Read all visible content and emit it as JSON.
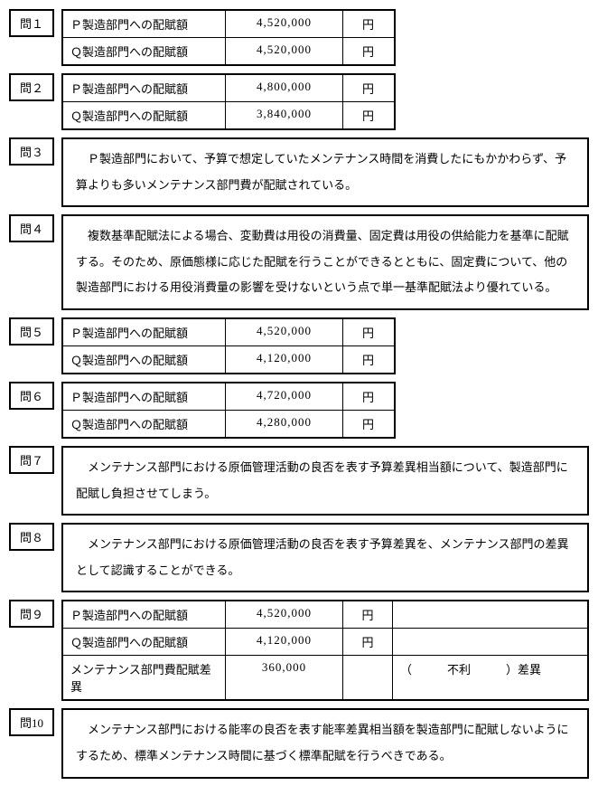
{
  "questions": [
    {
      "label": "問１",
      "type": "table",
      "narrow": true,
      "rows": [
        {
          "label": "Ｐ製造部門への配賦額",
          "value": "4,520,000",
          "unit": "円"
        },
        {
          "label": "Ｑ製造部門への配賦額",
          "value": "4,520,000",
          "unit": "円"
        }
      ]
    },
    {
      "label": "問２",
      "type": "table",
      "narrow": true,
      "rows": [
        {
          "label": "Ｐ製造部門への配賦額",
          "value": "4,800,000",
          "unit": "円"
        },
        {
          "label": "Ｑ製造部門への配賦額",
          "value": "3,840,000",
          "unit": "円"
        }
      ]
    },
    {
      "label": "問３",
      "type": "text",
      "text": "Ｐ製造部門において、予算で想定していたメンテナンス時間を消費したにもかかわらず、予算よりも多いメンテナンス部門費が配賦されている。"
    },
    {
      "label": "問４",
      "type": "text",
      "text": "複数基準配賦法による場合、変動費は用役の消費量、固定費は用役の供給能力を基準に配賦する。そのため、原価態様に応じた配賦を行うことができるとともに、固定費について、他の製造部門における用役消費量の影響を受けないという点で単一基準配賦法より優れている。"
    },
    {
      "label": "問５",
      "type": "table",
      "narrow": true,
      "rows": [
        {
          "label": "Ｐ製造部門への配賦額",
          "value": "4,520,000",
          "unit": "円"
        },
        {
          "label": "Ｑ製造部門への配賦額",
          "value": "4,120,000",
          "unit": "円"
        }
      ]
    },
    {
      "label": "問６",
      "type": "table",
      "narrow": true,
      "rows": [
        {
          "label": "Ｐ製造部門への配賦額",
          "value": "4,720,000",
          "unit": "円"
        },
        {
          "label": "Ｑ製造部門への配賦額",
          "value": "4,280,000",
          "unit": "円"
        }
      ]
    },
    {
      "label": "問７",
      "type": "text",
      "text": "メンテナンス部門における原価管理活動の良否を表す予算差異相当額について、製造部門に配賦し負担させてしまう。"
    },
    {
      "label": "問８",
      "type": "text",
      "text": "メンテナンス部門における原価管理活動の良否を表す予算差異を、メンテナンス部門の差異として認識することができる。"
    },
    {
      "label": "問９",
      "type": "table",
      "narrow": false,
      "rows": [
        {
          "label": "Ｐ製造部門への配賦額",
          "value": "4,520,000",
          "unit": "円"
        },
        {
          "label": "Ｑ製造部門への配賦額",
          "value": "4,120,000",
          "unit": "円"
        },
        {
          "label": "メンテナンス部門費配賦差異",
          "value": "360,000",
          "unit": "",
          "extra": "（　　　不利　　　）差異"
        }
      ]
    },
    {
      "label": "問10",
      "type": "text",
      "text": "メンテナンス部門における能率の良否を表す能率差異相当額を製造部門に配賦しないようにするため、標準メンテナンス時間に基づく標準配賦を行うべきである。"
    }
  ]
}
